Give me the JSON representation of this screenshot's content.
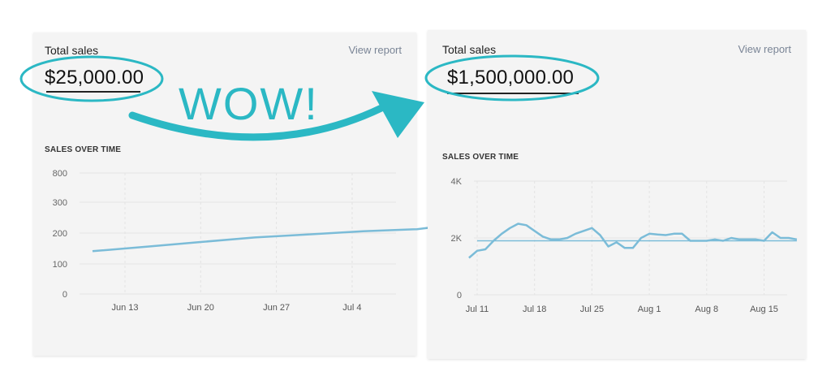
{
  "colors": {
    "line": "#7bbcd8",
    "accent": "#2bb8c4",
    "grid": "#e3e3e3"
  },
  "annotation": {
    "text": "WOW!"
  },
  "left_card": {
    "title": "Total sales",
    "view_report": "View report",
    "total": "$25,000.00",
    "section_title": "SALES OVER TIME"
  },
  "right_card": {
    "title": "Total sales",
    "view_report": "View report",
    "total": "$1,500,000.00",
    "section_title": "SALES OVER TIME"
  },
  "chart_data": [
    {
      "type": "line",
      "x_tick_labels": [
        "Jun 13",
        "Jun 20",
        "Jun 27",
        "Jul 4"
      ],
      "y_tick_labels": [
        "0",
        "100",
        "200",
        "300",
        "800"
      ],
      "ylabel": "",
      "xlabel": "",
      "grid": true,
      "series": [
        {
          "x": [
            0,
            5,
            10,
            15,
            20,
            25,
            30,
            33
          ],
          "values": [
            140,
            155,
            170,
            185,
            195,
            205,
            212,
            225
          ]
        }
      ]
    },
    {
      "type": "line",
      "x_tick_labels": [
        "Jul 11",
        "Jul 18",
        "Jul 25",
        "Aug 1",
        "Aug 8",
        "Aug 15"
      ],
      "y_tick_labels": [
        "0",
        "2K",
        "4K"
      ],
      "ylim": [
        0,
        4000
      ],
      "grid": true,
      "reference_line": 1900,
      "series": [
        {
          "x": [
            -1,
            0,
            1,
            2,
            3,
            4,
            5,
            6,
            7,
            8,
            9,
            10,
            11,
            12,
            13,
            14,
            15,
            16,
            17,
            18,
            19,
            20,
            21,
            22,
            23,
            24,
            25,
            26,
            27,
            28,
            29,
            30,
            31,
            32,
            33,
            34,
            35,
            36,
            37,
            38,
            39
          ],
          "values": [
            1300,
            1550,
            1600,
            1900,
            2150,
            2350,
            2500,
            2450,
            2250,
            2050,
            1950,
            1950,
            2000,
            2150,
            2250,
            2350,
            2100,
            1700,
            1850,
            1650,
            1650,
            2000,
            2150,
            2120,
            2100,
            2150,
            2150,
            1900,
            1900,
            1900,
            1950,
            1900,
            2000,
            1950,
            1950,
            1950,
            1900,
            2200,
            2000,
            2000,
            1950
          ]
        }
      ]
    }
  ]
}
